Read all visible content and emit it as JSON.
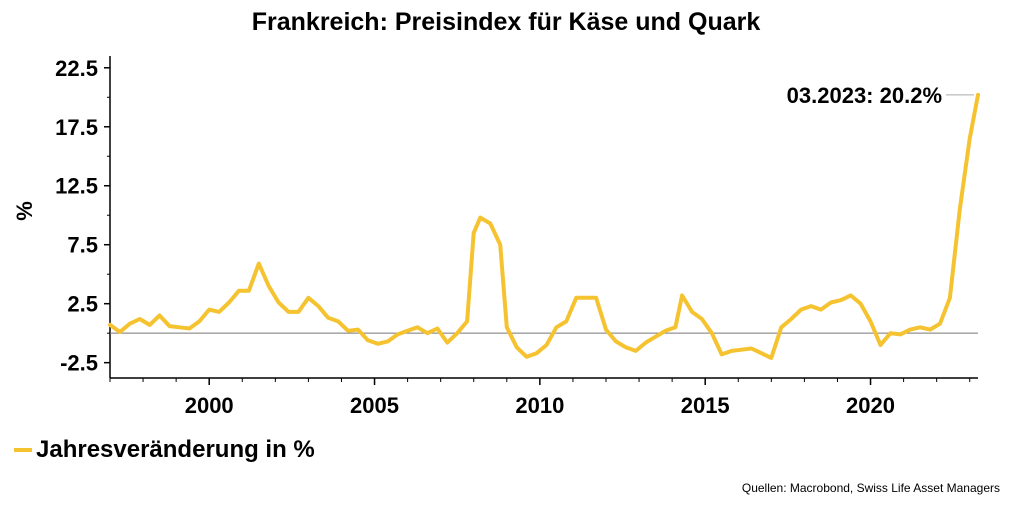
{
  "chart_data": {
    "type": "line",
    "title": "Frankreich: Preisindex für Käse und Quark",
    "ylabel": "%",
    "xlabel": "",
    "ylim": [
      -3.8,
      23.5
    ],
    "xlim": [
      1997.0,
      2023.25
    ],
    "yticks": [
      22.5,
      17.5,
      12.5,
      7.5,
      2.5,
      -2.5
    ],
    "ytick_labels": [
      "22.5",
      "17.5",
      "12.5",
      "7.5",
      "2.5",
      "-2.5"
    ],
    "xticks": [
      2000,
      2005,
      2010,
      2015,
      2020
    ],
    "xtick_labels": [
      "2000",
      "2005",
      "2010",
      "2015",
      "2020"
    ],
    "zero_line": true,
    "grid": false,
    "legend_position": "bottom-left",
    "series": [
      {
        "name": "Jahresveränderung in %",
        "color": "#f5c230",
        "x": [
          1997.0,
          1997.3,
          1997.6,
          1997.9,
          1998.2,
          1998.5,
          1998.8,
          1999.1,
          1999.4,
          1999.7,
          2000.0,
          2000.3,
          2000.6,
          2000.9,
          2001.2,
          2001.5,
          2001.8,
          2002.1,
          2002.4,
          2002.7,
          2003.0,
          2003.3,
          2003.6,
          2003.9,
          2004.2,
          2004.5,
          2004.8,
          2005.1,
          2005.4,
          2005.7,
          2006.0,
          2006.3,
          2006.6,
          2006.9,
          2007.2,
          2007.5,
          2007.8,
          2008.0,
          2008.2,
          2008.5,
          2008.8,
          2009.0,
          2009.3,
          2009.6,
          2009.9,
          2010.2,
          2010.5,
          2010.8,
          2011.1,
          2011.4,
          2011.7,
          2012.0,
          2012.3,
          2012.6,
          2012.9,
          2013.2,
          2013.5,
          2013.8,
          2014.1,
          2014.3,
          2014.6,
          2014.9,
          2015.2,
          2015.5,
          2015.8,
          2016.1,
          2016.4,
          2016.7,
          2017.0,
          2017.3,
          2017.6,
          2017.9,
          2018.2,
          2018.5,
          2018.8,
          2019.1,
          2019.4,
          2019.7,
          2020.0,
          2020.3,
          2020.6,
          2020.9,
          2021.2,
          2021.5,
          2021.8,
          2022.1,
          2022.4,
          2022.7,
          2023.0,
          2023.25
        ],
        "values": [
          0.7,
          0.1,
          0.8,
          1.2,
          0.7,
          1.5,
          0.6,
          0.5,
          0.4,
          1.0,
          2.0,
          1.8,
          2.6,
          3.6,
          3.6,
          5.9,
          4.0,
          2.6,
          1.8,
          1.8,
          3.0,
          2.3,
          1.3,
          1.0,
          0.2,
          0.3,
          -0.6,
          -0.9,
          -0.7,
          -0.1,
          0.2,
          0.5,
          0.0,
          0.4,
          -0.8,
          0.0,
          1.0,
          8.5,
          9.8,
          9.3,
          7.5,
          0.5,
          -1.2,
          -2.0,
          -1.7,
          -1.0,
          0.5,
          1.0,
          3.0,
          3.0,
          3.0,
          0.3,
          -0.7,
          -1.2,
          -1.5,
          -0.8,
          -0.3,
          0.2,
          0.5,
          3.2,
          1.8,
          1.2,
          0.0,
          -1.8,
          -1.5,
          -1.4,
          -1.3,
          -1.7,
          -2.1,
          0.5,
          1.2,
          2.0,
          2.3,
          2.0,
          2.6,
          2.8,
          3.2,
          2.5,
          1.0,
          -1.0,
          0.0,
          -0.1,
          0.3,
          0.5,
          0.3,
          0.8,
          3.0,
          10.5,
          16.5,
          20.2
        ]
      }
    ],
    "annotation": {
      "text": "03.2023: 20.2%",
      "x": 2023.25,
      "y": 20.2
    },
    "source": "Quellen: Macrobond, Swiss Life Asset Managers"
  }
}
